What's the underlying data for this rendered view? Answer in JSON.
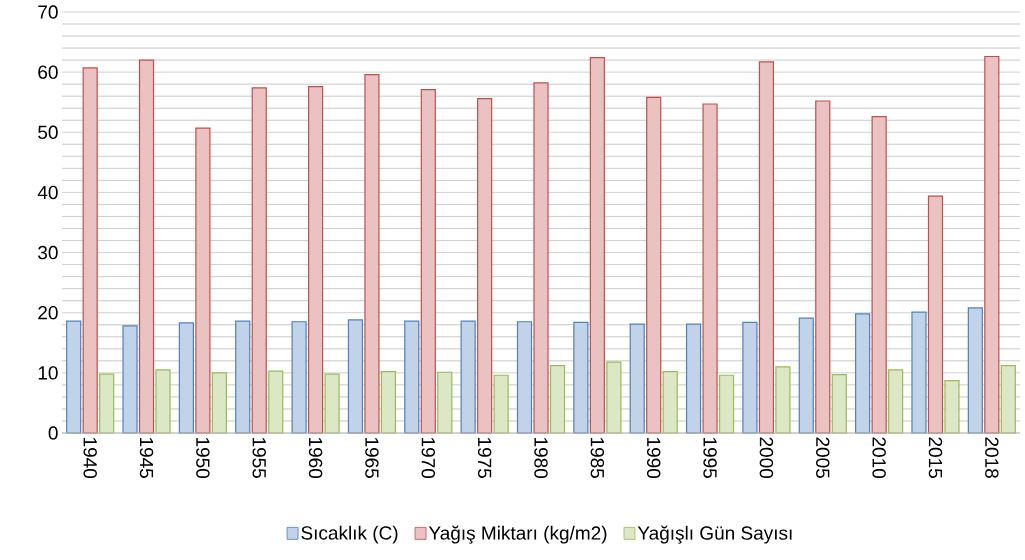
{
  "chart_data": {
    "type": "bar",
    "categories": [
      "1940",
      "1945",
      "1950",
      "1955",
      "1960",
      "1965",
      "1970",
      "1975",
      "1980",
      "1985",
      "1990",
      "1995",
      "2000",
      "2005",
      "2010",
      "2015",
      "2018"
    ],
    "series": [
      {
        "name": "Sıcaklık (C)",
        "color": "#4f81bd",
        "values": [
          18.6,
          17.8,
          18.3,
          18.6,
          18.5,
          18.8,
          18.6,
          18.6,
          18.5,
          18.4,
          18.1,
          18.1,
          18.4,
          19.1,
          19.8,
          20.1,
          20.8
        ]
      },
      {
        "name": "Yağış Miktarı (kg/m2)",
        "color": "#c0504d",
        "values": [
          60.7,
          62.0,
          50.7,
          57.4,
          57.6,
          59.6,
          57.1,
          55.6,
          58.2,
          62.4,
          55.8,
          54.7,
          61.7,
          55.2,
          52.6,
          39.4,
          62.6
        ]
      },
      {
        "name": "Yağışlı Gün Sayısı",
        "color": "#9bbb59",
        "values": [
          9.8,
          10.5,
          10.0,
          10.3,
          9.8,
          10.2,
          10.1,
          9.6,
          11.2,
          11.8,
          10.2,
          9.6,
          11.0,
          9.7,
          10.5,
          8.7,
          11.2
        ]
      }
    ],
    "ylim": [
      0,
      70
    ],
    "yticks": [
      0,
      {
        "value": 2,
        "label": null
      },
      {
        "value": 4,
        "label": null
      },
      {
        "value": 6,
        "label": null
      },
      {
        "value": 8,
        "label": null
      },
      10,
      {
        "value": 12,
        "label": null
      },
      {
        "value": 14,
        "label": null
      },
      {
        "value": 16,
        "label": null
      },
      {
        "value": 18,
        "label": null
      },
      20,
      {
        "value": 22,
        "label": null
      },
      {
        "value": 24,
        "label": null
      },
      {
        "value": 26,
        "label": null
      },
      {
        "value": 28,
        "label": null
      },
      30,
      {
        "value": 32,
        "label": null
      },
      {
        "value": 34,
        "label": null
      },
      {
        "value": 36,
        "label": null
      },
      {
        "value": 38,
        "label": null
      },
      40,
      {
        "value": 42,
        "label": null
      },
      {
        "value": 44,
        "label": null
      },
      {
        "value": 46,
        "label": null
      },
      {
        "value": 48,
        "label": null
      },
      50,
      {
        "value": 52,
        "label": null
      },
      {
        "value": 54,
        "label": null
      },
      {
        "value": 56,
        "label": null
      },
      {
        "value": 58,
        "label": null
      },
      60,
      {
        "value": 62,
        "label": null
      },
      {
        "value": 64,
        "label": null
      },
      {
        "value": 66,
        "label": null
      },
      {
        "value": 68,
        "label": null
      },
      70
    ],
    "grid": "y",
    "legend": "bottom"
  }
}
